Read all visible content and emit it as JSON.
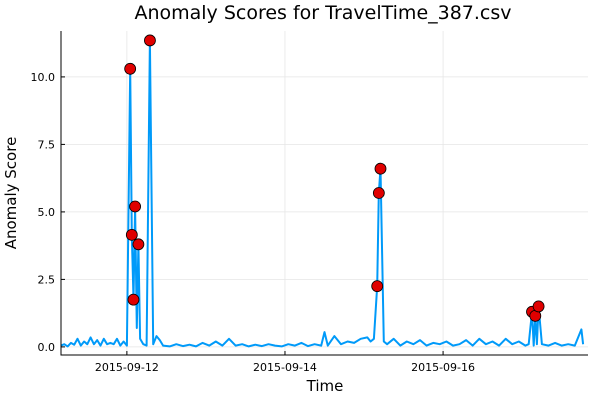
{
  "chart_data": {
    "type": "line",
    "title": "Anomaly Scores for TravelTime_387.csv",
    "xlabel": "Time",
    "ylabel": "Anomaly Score",
    "x_axis_type": "date",
    "xlim": [
      "2015-09-11 04:00",
      "2015-09-17 20:00"
    ],
    "ylim": [
      -0.3,
      11.7
    ],
    "x_ticks": [
      "2015-09-12",
      "2015-09-14",
      "2015-09-16"
    ],
    "y_ticks": [
      0.0,
      2.5,
      5.0,
      7.5,
      10.0
    ],
    "y_tick_labels": [
      "0.0",
      "2.5",
      "5.0",
      "7.5",
      "10.0"
    ],
    "grid": true,
    "legend": "none",
    "colors": {
      "line": "#009af9",
      "anomaly": "#e00000"
    },
    "series": [
      {
        "values": [
          [
            "2015-09-11 04:00",
            0.05
          ],
          [
            "2015-09-11 05:00",
            0.1
          ],
          [
            "2015-09-11 06:00",
            0.02
          ],
          [
            "2015-09-11 07:00",
            0.15
          ],
          [
            "2015-09-11 08:00",
            0.08
          ],
          [
            "2015-09-11 09:00",
            0.3
          ],
          [
            "2015-09-11 10:00",
            0.05
          ],
          [
            "2015-09-11 11:00",
            0.2
          ],
          [
            "2015-09-11 12:00",
            0.1
          ],
          [
            "2015-09-11 13:00",
            0.35
          ],
          [
            "2015-09-11 14:00",
            0.1
          ],
          [
            "2015-09-11 15:00",
            0.25
          ],
          [
            "2015-09-11 16:00",
            0.05
          ],
          [
            "2015-09-11 17:00",
            0.3
          ],
          [
            "2015-09-11 18:00",
            0.1
          ],
          [
            "2015-09-11 19:00",
            0.15
          ],
          [
            "2015-09-11 20:00",
            0.1
          ],
          [
            "2015-09-11 21:00",
            0.3
          ],
          [
            "2015-09-11 22:00",
            0.05
          ],
          [
            "2015-09-11 23:00",
            0.2
          ],
          [
            "2015-09-12 00:00",
            0.05
          ],
          [
            "2015-09-12 01:00",
            10.3
          ],
          [
            "2015-09-12 01:30",
            4.15
          ],
          [
            "2015-09-12 02:00",
            1.75
          ],
          [
            "2015-09-12 02:30",
            5.2
          ],
          [
            "2015-09-12 03:00",
            0.7
          ],
          [
            "2015-09-12 03:30",
            3.8
          ],
          [
            "2015-09-12 04:00",
            0.3
          ],
          [
            "2015-09-12 05:00",
            0.1
          ],
          [
            "2015-09-12 06:00",
            0.05
          ],
          [
            "2015-09-12 07:00",
            11.35
          ],
          [
            "2015-09-12 08:00",
            0.1
          ],
          [
            "2015-09-12 09:00",
            0.4
          ],
          [
            "2015-09-12 10:00",
            0.25
          ],
          [
            "2015-09-12 11:00",
            0.05
          ],
          [
            "2015-09-12 13:00",
            0.02
          ],
          [
            "2015-09-12 15:00",
            0.1
          ],
          [
            "2015-09-12 17:00",
            0.03
          ],
          [
            "2015-09-12 19:00",
            0.08
          ],
          [
            "2015-09-12 21:00",
            0.02
          ],
          [
            "2015-09-12 23:00",
            0.15
          ],
          [
            "2015-09-13 01:00",
            0.05
          ],
          [
            "2015-09-13 03:00",
            0.2
          ],
          [
            "2015-09-13 05:00",
            0.05
          ],
          [
            "2015-09-13 07:00",
            0.3
          ],
          [
            "2015-09-13 09:00",
            0.05
          ],
          [
            "2015-09-13 11:00",
            0.1
          ],
          [
            "2015-09-13 13:00",
            0.02
          ],
          [
            "2015-09-13 15:00",
            0.08
          ],
          [
            "2015-09-13 17:00",
            0.03
          ],
          [
            "2015-09-13 19:00",
            0.1
          ],
          [
            "2015-09-13 21:00",
            0.05
          ],
          [
            "2015-09-13 23:00",
            0.02
          ],
          [
            "2015-09-14 01:00",
            0.1
          ],
          [
            "2015-09-14 03:00",
            0.05
          ],
          [
            "2015-09-14 05:00",
            0.15
          ],
          [
            "2015-09-14 07:00",
            0.03
          ],
          [
            "2015-09-14 09:00",
            0.1
          ],
          [
            "2015-09-14 11:00",
            0.05
          ],
          [
            "2015-09-14 12:00",
            0.55
          ],
          [
            "2015-09-14 13:00",
            0.05
          ],
          [
            "2015-09-14 15:00",
            0.4
          ],
          [
            "2015-09-14 17:00",
            0.1
          ],
          [
            "2015-09-14 19:00",
            0.2
          ],
          [
            "2015-09-14 21:00",
            0.15
          ],
          [
            "2015-09-14 23:00",
            0.3
          ],
          [
            "2015-09-15 01:00",
            0.35
          ],
          [
            "2015-09-15 02:00",
            0.2
          ],
          [
            "2015-09-15 03:00",
            0.3
          ],
          [
            "2015-09-15 04:00",
            2.25
          ],
          [
            "2015-09-15 04:30",
            5.7
          ],
          [
            "2015-09-15 05:00",
            6.6
          ],
          [
            "2015-09-15 06:00",
            0.2
          ],
          [
            "2015-09-15 07:00",
            0.1
          ],
          [
            "2015-09-15 09:00",
            0.3
          ],
          [
            "2015-09-15 11:00",
            0.05
          ],
          [
            "2015-09-15 13:00",
            0.2
          ],
          [
            "2015-09-15 15:00",
            0.1
          ],
          [
            "2015-09-15 17:00",
            0.25
          ],
          [
            "2015-09-15 19:00",
            0.05
          ],
          [
            "2015-09-15 21:00",
            0.15
          ],
          [
            "2015-09-15 23:00",
            0.1
          ],
          [
            "2015-09-16 01:00",
            0.2
          ],
          [
            "2015-09-16 03:00",
            0.05
          ],
          [
            "2015-09-16 05:00",
            0.1
          ],
          [
            "2015-09-16 07:00",
            0.25
          ],
          [
            "2015-09-16 09:00",
            0.05
          ],
          [
            "2015-09-16 11:00",
            0.3
          ],
          [
            "2015-09-16 13:00",
            0.1
          ],
          [
            "2015-09-16 15:00",
            0.2
          ],
          [
            "2015-09-16 17:00",
            0.05
          ],
          [
            "2015-09-16 19:00",
            0.3
          ],
          [
            "2015-09-16 21:00",
            0.1
          ],
          [
            "2015-09-16 23:00",
            0.2
          ],
          [
            "2015-09-17 01:00",
            0.05
          ],
          [
            "2015-09-17 02:00",
            0.1
          ],
          [
            "2015-09-17 03:00",
            1.3
          ],
          [
            "2015-09-17 03:30",
            0.05
          ],
          [
            "2015-09-17 04:00",
            1.15
          ],
          [
            "2015-09-17 04:30",
            0.1
          ],
          [
            "2015-09-17 05:00",
            1.5
          ],
          [
            "2015-09-17 06:00",
            0.1
          ],
          [
            "2015-09-17 08:00",
            0.05
          ],
          [
            "2015-09-17 10:00",
            0.15
          ],
          [
            "2015-09-17 12:00",
            0.05
          ],
          [
            "2015-09-17 14:00",
            0.1
          ],
          [
            "2015-09-17 16:00",
            0.05
          ],
          [
            "2015-09-17 18:00",
            0.65
          ],
          [
            "2015-09-17 18:30",
            0.1
          ]
        ]
      }
    ],
    "anomalies": [
      [
        "2015-09-12 01:00",
        10.3
      ],
      [
        "2015-09-12 01:30",
        4.15
      ],
      [
        "2015-09-12 02:00",
        1.75
      ],
      [
        "2015-09-12 02:30",
        5.2
      ],
      [
        "2015-09-12 03:30",
        3.8
      ],
      [
        "2015-09-12 07:00",
        11.35
      ],
      [
        "2015-09-15 04:00",
        2.25
      ],
      [
        "2015-09-15 04:30",
        5.7
      ],
      [
        "2015-09-15 05:00",
        6.6
      ],
      [
        "2015-09-17 03:00",
        1.3
      ],
      [
        "2015-09-17 04:00",
        1.15
      ],
      [
        "2015-09-17 05:00",
        1.5
      ]
    ]
  }
}
